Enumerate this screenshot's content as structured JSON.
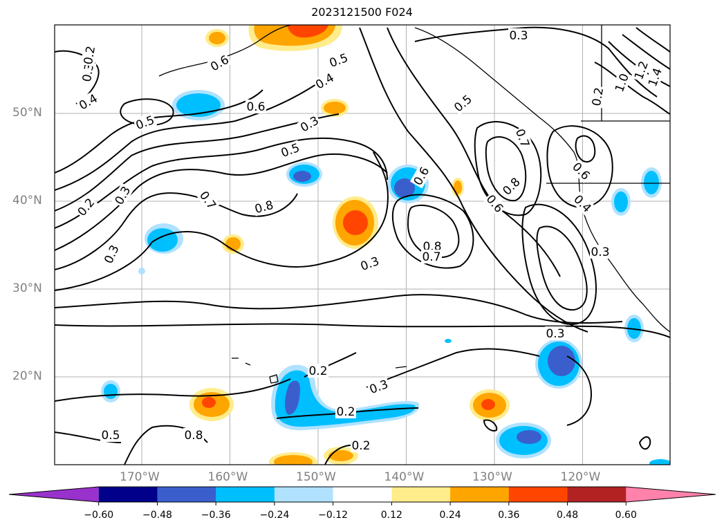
{
  "title": "2023121500 F024",
  "map": {
    "lat_labels": [
      {
        "text": "50°N",
        "lat": 50
      },
      {
        "text": "40°N",
        "lat": 40
      },
      {
        "text": "30°N",
        "lat": 30
      },
      {
        "text": "20°N",
        "lat": 20
      }
    ],
    "lon_labels": [
      {
        "text": "170°W",
        "lon": -170
      },
      {
        "text": "160°W",
        "lon": -160
      },
      {
        "text": "150°W",
        "lon": -150
      },
      {
        "text": "140°W",
        "lon": -140
      },
      {
        "text": "130°W",
        "lon": -130
      },
      {
        "text": "120°W",
        "lon": -120
      }
    ],
    "contour_labels": [
      "0.3",
      "0.4",
      "0.5",
      "0.3",
      "0.2",
      "0.3",
      "0.5",
      "0.8",
      "0.7",
      "0.8",
      "0.6",
      "0.5",
      "0.4",
      "0.3",
      "0.5",
      "0.6",
      "0.6",
      "0.8",
      "0.7",
      "0.3",
      "0.5",
      "0.7",
      "0.8",
      "0.6",
      "0.6",
      "0.4",
      "0.3",
      "0.3",
      "0.3",
      "1.0",
      "1.2",
      "1.4",
      "0.2",
      "0.2",
      "0.2",
      "0.2",
      "0.2",
      "0.3"
    ]
  },
  "colorbar": {
    "ticks": [
      "−0.60",
      "−0.48",
      "−0.36",
      "−0.24",
      "−0.12",
      "0.12",
      "0.24",
      "0.36",
      "0.48",
      "0.60"
    ],
    "colors": [
      "#9932cc",
      "#00008b",
      "#3a5fcd",
      "#00bfff",
      "#b0e2ff",
      "#ffffff",
      "#ffec8b",
      "#ffa500",
      "#ff4500",
      "#b22222",
      "#ff82ab"
    ]
  }
}
